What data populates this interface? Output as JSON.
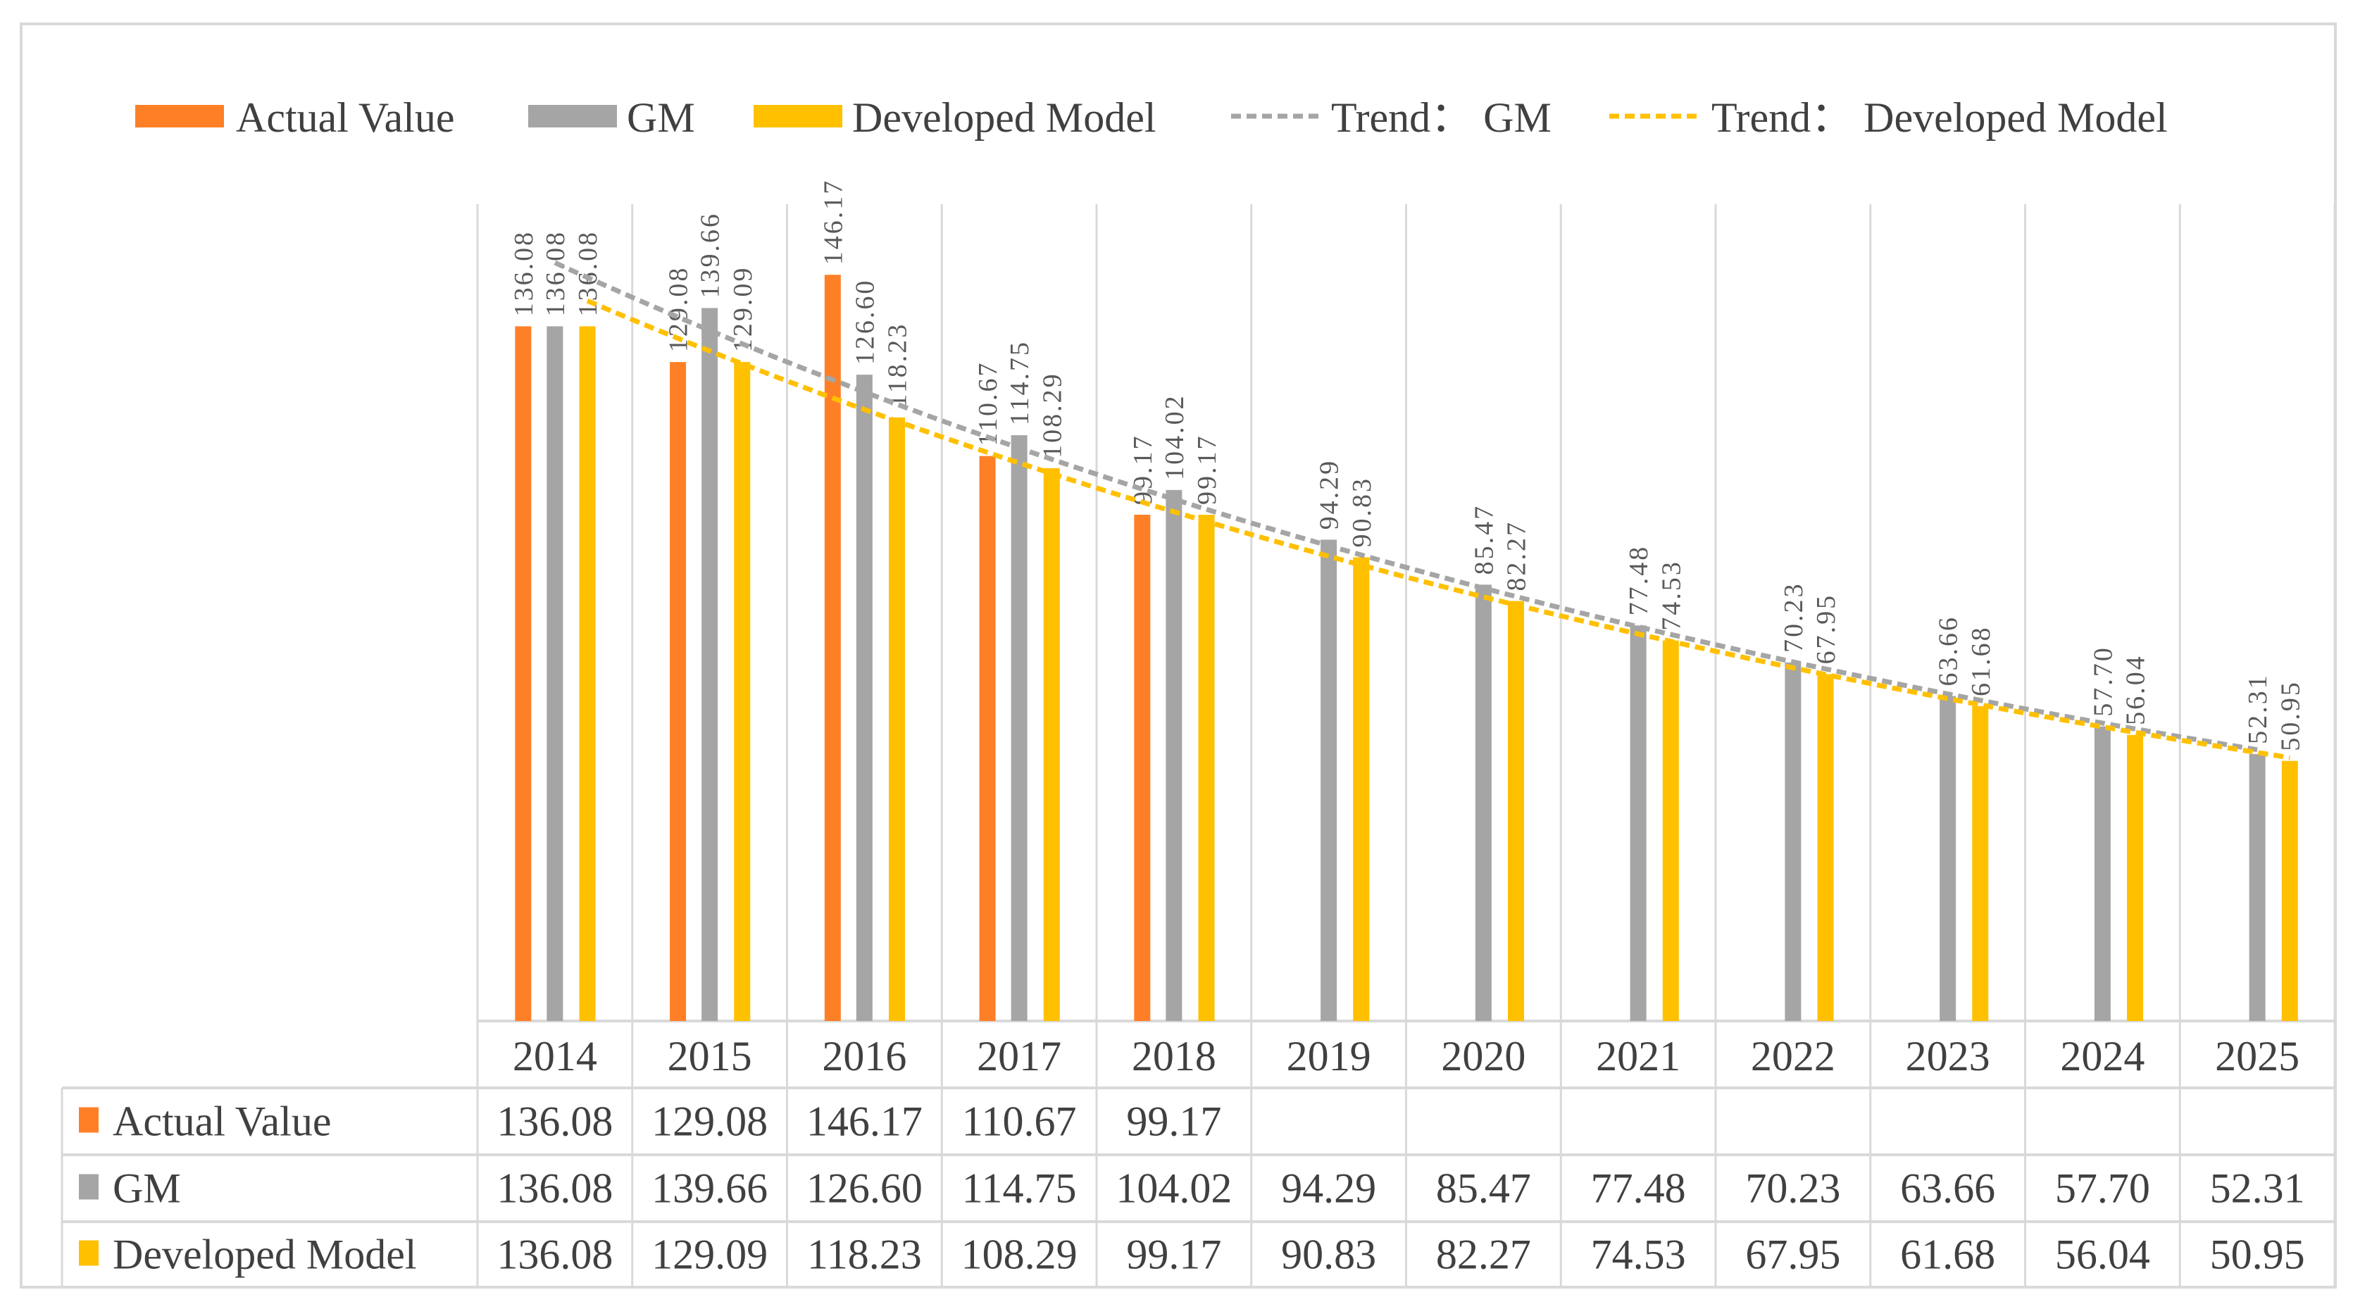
{
  "chart_data": {
    "type": "bar",
    "title": "",
    "xlabel": "",
    "ylabel": "",
    "ylim": [
      0,
      160
    ],
    "grid": "vertical category separators",
    "legend_position": "top",
    "categories": [
      "2014",
      "2015",
      "2016",
      "2017",
      "2018",
      "2019",
      "2020",
      "2021",
      "2022",
      "2023",
      "2024",
      "2025"
    ],
    "series": [
      {
        "name": "Actual Value",
        "color": "#FF7F27",
        "values": [
          136.08,
          129.08,
          146.17,
          110.67,
          99.17,
          null,
          null,
          null,
          null,
          null,
          null,
          null
        ],
        "labels": [
          "136.08",
          "129.08",
          "146.17",
          "110.67",
          "99.17",
          "",
          "",
          "",
          "",
          "",
          "",
          ""
        ]
      },
      {
        "name": "GM",
        "color": "#A5A5A5",
        "values": [
          136.08,
          139.66,
          126.6,
          114.75,
          104.02,
          94.29,
          85.47,
          77.48,
          70.23,
          63.66,
          57.7,
          52.31
        ],
        "labels": [
          "136.08",
          "139.66",
          "126.60",
          "114.75",
          "104.02",
          "94.29",
          "85.47",
          "77.48",
          "70.23",
          "63.66",
          "57.70",
          "52.31"
        ]
      },
      {
        "name": "Developed Model",
        "color": "#FFC000",
        "values": [
          136.08,
          129.09,
          118.23,
          108.29,
          99.17,
          90.83,
          82.27,
          74.53,
          67.95,
          61.68,
          56.04,
          50.95
        ],
        "labels": [
          "136.08",
          "129.09",
          "118.23",
          "108.29",
          "99.17",
          "90.83",
          "82.27",
          "74.53",
          "67.95",
          "61.68",
          "56.04",
          "50.95"
        ]
      }
    ],
    "trendlines": [
      {
        "name": "Trend： GM",
        "series": "GM",
        "type": "exponential",
        "color": "#A5A5A5",
        "style": "dashed"
      },
      {
        "name": "Trend： Developed Model",
        "series": "Developed Model",
        "type": "exponential",
        "color": "#FFC000",
        "style": "dashed"
      }
    ],
    "data_table": true
  }
}
